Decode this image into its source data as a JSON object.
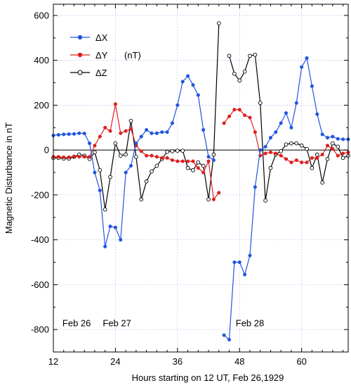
{
  "chart_data": {
    "type": "line",
    "title": "",
    "xlabel": "Hours starting on 12 UT, Feb 26,1929",
    "ylabel": "Magnetic Disturbance in nT",
    "xlim": [
      12,
      69
    ],
    "ylim": [
      -900,
      650
    ],
    "x_ticks": [
      12,
      24,
      36,
      48,
      60
    ],
    "y_ticks": [
      -800,
      -600,
      -400,
      -200,
      0,
      200,
      400,
      600
    ],
    "grid": true,
    "legend_position": "top-left",
    "annotations": [
      {
        "text": "Feb 26",
        "x": 16.5,
        "y": -785
      },
      {
        "text": "Feb 27",
        "x": 24.3,
        "y": -785
      },
      {
        "text": "Feb 28",
        "x": 50.0,
        "y": -785
      }
    ],
    "series": [
      {
        "name": "ΔX",
        "color": "#1f55e0",
        "marker": "filled-circle",
        "segments": [
          [
            [
              12,
              65
            ],
            [
              13,
              68
            ],
            [
              14,
              70
            ],
            [
              15,
              71
            ],
            [
              16,
              72
            ],
            [
              17,
              75
            ],
            [
              18,
              74
            ],
            [
              19,
              30
            ],
            [
              20,
              -100
            ],
            [
              21,
              -180
            ],
            [
              22,
              -430
            ],
            [
              23,
              -340
            ],
            [
              24,
              -345
            ],
            [
              25,
              -400
            ],
            [
              26,
              -100
            ],
            [
              27,
              -70
            ],
            [
              28,
              30
            ],
            [
              29,
              60
            ],
            [
              30,
              90
            ],
            [
              31,
              75
            ],
            [
              32,
              75
            ],
            [
              33,
              80
            ],
            [
              34,
              80
            ],
            [
              35,
              120
            ],
            [
              36,
              200
            ],
            [
              37,
              305
            ],
            [
              38,
              330
            ],
            [
              39,
              290
            ],
            [
              40,
              245
            ],
            [
              41,
              90
            ],
            [
              42,
              -30
            ],
            [
              43,
              -45
            ]
          ],
          [
            [
              45,
              -825
            ],
            [
              46,
              -845
            ],
            [
              47,
              -500
            ],
            [
              48,
              -500
            ],
            [
              49,
              -555
            ],
            [
              50,
              -470
            ],
            [
              51,
              -165
            ],
            [
              52,
              0
            ],
            [
              53,
              15
            ],
            [
              54,
              55
            ],
            [
              55,
              80
            ],
            [
              56,
              120
            ],
            [
              57,
              165
            ],
            [
              58,
              100
            ],
            [
              59,
              210
            ],
            [
              60,
              370
            ],
            [
              61,
              410
            ],
            [
              62,
              285
            ],
            [
              63,
              160
            ],
            [
              64,
              70
            ],
            [
              65,
              55
            ],
            [
              66,
              60
            ],
            [
              67,
              50
            ],
            [
              68,
              48
            ],
            [
              69,
              48
            ]
          ]
        ]
      },
      {
        "name": "ΔY",
        "unit_label": "(nT)",
        "color": "#e01e1e",
        "marker": "filled-circle",
        "segments": [
          [
            [
              12,
              -30
            ],
            [
              13,
              -30
            ],
            [
              14,
              -32
            ],
            [
              15,
              -32
            ],
            [
              16,
              -28
            ],
            [
              17,
              -30
            ],
            [
              18,
              -30
            ],
            [
              19,
              -30
            ],
            [
              20,
              20
            ],
            [
              21,
              60
            ],
            [
              22,
              100
            ],
            [
              23,
              85
            ],
            [
              24,
              205
            ],
            [
              25,
              75
            ],
            [
              26,
              85
            ],
            [
              27,
              95
            ],
            [
              28,
              20
            ],
            [
              29,
              -5
            ],
            [
              30,
              -25
            ],
            [
              31,
              -25
            ],
            [
              32,
              -30
            ],
            [
              33,
              -35
            ],
            [
              34,
              -35
            ],
            [
              35,
              -45
            ],
            [
              36,
              -50
            ],
            [
              37,
              -50
            ],
            [
              38,
              -50
            ],
            [
              39,
              -50
            ],
            [
              40,
              -80
            ],
            [
              41,
              -100
            ],
            [
              42,
              -50
            ],
            [
              43,
              -220
            ],
            [
              44,
              -190
            ]
          ],
          [
            [
              45,
              120
            ],
            [
              46,
              150
            ],
            [
              47,
              180
            ],
            [
              48,
              180
            ],
            [
              49,
              155
            ],
            [
              50,
              145
            ],
            [
              51,
              80
            ],
            [
              52,
              -25
            ],
            [
              53,
              -15
            ],
            [
              54,
              -10
            ],
            [
              55,
              -15
            ],
            [
              56,
              -25
            ],
            [
              57,
              -40
            ],
            [
              58,
              -55
            ],
            [
              59,
              -45
            ],
            [
              60,
              -55
            ],
            [
              61,
              -55
            ],
            [
              62,
              -35
            ],
            [
              63,
              -35
            ],
            [
              64,
              -20
            ],
            [
              65,
              20
            ],
            [
              66,
              5
            ],
            [
              67,
              -25
            ],
            [
              68,
              -15
            ],
            [
              69,
              -10
            ]
          ]
        ]
      },
      {
        "name": "ΔZ",
        "color": "#000000",
        "marker": "open-circle",
        "segments": [
          [
            [
              12,
              -35
            ],
            [
              13,
              -35
            ],
            [
              14,
              -38
            ],
            [
              15,
              -38
            ],
            [
              16,
              -30
            ],
            [
              17,
              -20
            ],
            [
              18,
              -25
            ],
            [
              19,
              -40
            ],
            [
              20,
              -10
            ],
            [
              21,
              -90
            ],
            [
              22,
              -265
            ],
            [
              23,
              -120
            ],
            [
              24,
              30
            ],
            [
              25,
              -25
            ],
            [
              26,
              -20
            ],
            [
              27,
              130
            ],
            [
              28,
              -30
            ],
            [
              29,
              -220
            ],
            [
              30,
              -140
            ],
            [
              31,
              -95
            ],
            [
              32,
              -70
            ],
            [
              33,
              -40
            ],
            [
              34,
              -8
            ],
            [
              35,
              -5
            ],
            [
              36,
              -3
            ],
            [
              37,
              -3
            ],
            [
              38,
              -80
            ],
            [
              39,
              -90
            ],
            [
              40,
              -55
            ],
            [
              41,
              -70
            ],
            [
              42,
              -220
            ],
            [
              43,
              -20
            ],
            [
              44,
              565
            ]
          ],
          [
            [
              46,
              420
            ],
            [
              47,
              340
            ],
            [
              48,
              310
            ],
            [
              49,
              350
            ],
            [
              50,
              420
            ],
            [
              51,
              425
            ],
            [
              52,
              210
            ],
            [
              53,
              -225
            ],
            [
              54,
              -80
            ],
            [
              55,
              -20
            ],
            [
              56,
              -5
            ],
            [
              57,
              25
            ],
            [
              58,
              30
            ],
            [
              59,
              30
            ],
            [
              60,
              20
            ],
            [
              61,
              5
            ],
            [
              62,
              -80
            ],
            [
              63,
              -20
            ],
            [
              64,
              -145
            ],
            [
              65,
              -40
            ],
            [
              66,
              30
            ],
            [
              67,
              15
            ],
            [
              68,
              -35
            ],
            [
              69,
              -25
            ]
          ]
        ]
      }
    ]
  }
}
